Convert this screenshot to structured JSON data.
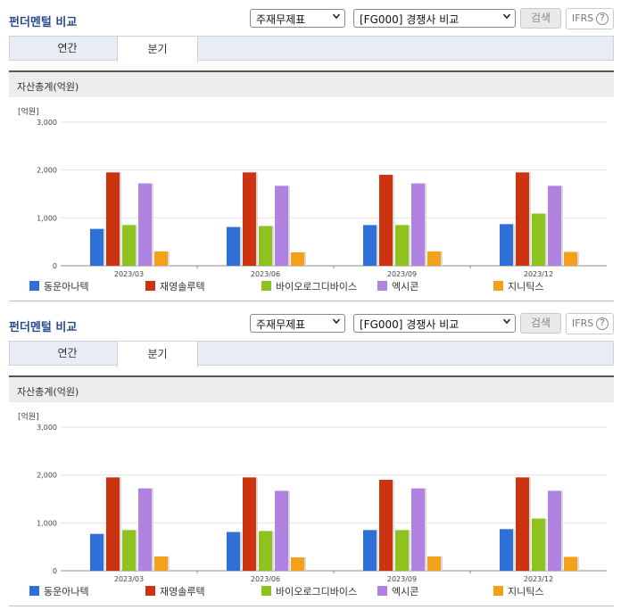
{
  "panels": [
    {
      "title": "펀더멘털 비교",
      "statement_select": "주재무제표",
      "compare_select": "[FG000] 경쟁사 비교",
      "search_label": "검색",
      "ifrs_label": "IFRS",
      "ifrs_help": "?",
      "tabs": [
        "연간",
        "분기"
      ],
      "active_tab": "분기",
      "section_title": "자산총계(억원)",
      "unit_label": "[억원]"
    },
    {
      "title": "펀더멘털 비교",
      "statement_select": "주재무제표",
      "compare_select": "[FG000] 경쟁사 비교",
      "search_label": "검색",
      "ifrs_label": "IFRS",
      "ifrs_help": "?",
      "tabs": [
        "연간",
        "분기"
      ],
      "active_tab": "분기",
      "section_title": "자산총계(억원)",
      "unit_label": "[억원]"
    }
  ],
  "icons": {
    "dropdown": "chevron-down-icon",
    "help": "question-circle-icon"
  },
  "chart_data": [
    {
      "type": "bar",
      "title": "자산총계(억원)",
      "ylabel": "[억원]",
      "ylim": [
        0,
        3000
      ],
      "yticks": [
        "0",
        "1,000",
        "2,000",
        "3,000"
      ],
      "categories": [
        "2023/03",
        "2023/06",
        "2023/09",
        "2023/12"
      ],
      "legend_position": "bottom",
      "series": [
        {
          "name": "동운아나텍",
          "color": "#2f6fd8",
          "values": [
            770,
            810,
            850,
            870
          ]
        },
        {
          "name": "재영솔루텍",
          "color": "#cc3311",
          "values": [
            1950,
            1950,
            1900,
            1950
          ]
        },
        {
          "name": "바이오로그디바이스",
          "color": "#8dc21f",
          "values": [
            850,
            830,
            850,
            1090
          ]
        },
        {
          "name": "엑시콘",
          "color": "#b083e0",
          "values": [
            1720,
            1670,
            1720,
            1670
          ]
        },
        {
          "name": "지니틱스",
          "color": "#f5a01a",
          "values": [
            300,
            280,
            300,
            290
          ]
        }
      ]
    },
    {
      "type": "bar",
      "title": "자산총계(억원)",
      "ylabel": "[억원]",
      "ylim": [
        0,
        3000
      ],
      "yticks": [
        "0",
        "1,000",
        "2,000",
        "3,000"
      ],
      "categories": [
        "2023/03",
        "2023/06",
        "2023/09",
        "2023/12"
      ],
      "legend_position": "bottom",
      "series": [
        {
          "name": "동운아나텍",
          "color": "#2f6fd8",
          "values": [
            770,
            810,
            850,
            870
          ]
        },
        {
          "name": "재영솔루텍",
          "color": "#cc3311",
          "values": [
            1950,
            1950,
            1900,
            1950
          ]
        },
        {
          "name": "바이오로그디바이스",
          "color": "#8dc21f",
          "values": [
            850,
            830,
            850,
            1090
          ]
        },
        {
          "name": "엑시콘",
          "color": "#b083e0",
          "values": [
            1720,
            1670,
            1720,
            1670
          ]
        },
        {
          "name": "지니틱스",
          "color": "#f5a01a",
          "values": [
            300,
            280,
            300,
            290
          ]
        }
      ]
    }
  ]
}
